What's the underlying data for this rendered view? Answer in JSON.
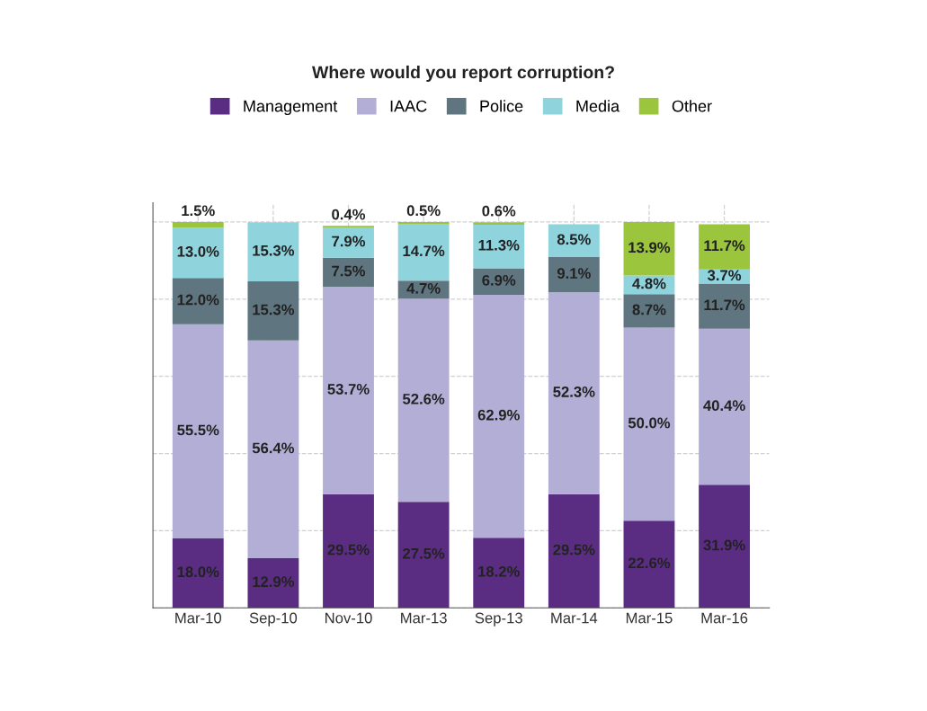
{
  "chart_data": {
    "type": "bar",
    "title": "Where would you report corruption?",
    "stacked": true,
    "grid": true,
    "legend": "top",
    "tick_labels": "x",
    "categories": [
      "Mar-10",
      "Sep-10",
      "Nov-10",
      "Mar-13",
      "Sep-13",
      "Mar-14",
      "Mar-15",
      "Mar-16"
    ],
    "series": [
      {
        "name": "Management",
        "color": "#5b2d82",
        "values": [
          18.0,
          12.9,
          29.5,
          27.5,
          18.2,
          29.5,
          22.6,
          31.9
        ],
        "value_labels": [
          "18.0%",
          "12.9%",
          "29.5%",
          "27.5%",
          "18.2%",
          "29.5%",
          "22.6%",
          "31.9%"
        ]
      },
      {
        "name": "IAAC",
        "color": "#b3aed6",
        "values": [
          55.5,
          56.4,
          53.7,
          52.6,
          62.9,
          52.3,
          50.0,
          40.4
        ],
        "value_labels": [
          "55.5%",
          "56.4%",
          "53.7%",
          "52.6%",
          "62.9%",
          "52.3%",
          "50.0%",
          "40.4%"
        ]
      },
      {
        "name": "Police",
        "color": "#5f7580",
        "values": [
          12.0,
          15.3,
          7.5,
          4.7,
          6.9,
          9.1,
          8.7,
          11.7
        ],
        "value_labels": [
          "12.0%",
          "15.3%",
          "7.5%",
          "4.7%",
          "6.9%",
          "9.1%",
          "8.7%",
          "11.7%"
        ]
      },
      {
        "name": "Media",
        "color": "#8fd3dc",
        "values": [
          13.0,
          15.3,
          7.9,
          14.7,
          11.3,
          8.5,
          4.8,
          3.7
        ],
        "value_labels": [
          "13.0%",
          "15.3%",
          "7.9%",
          "14.7%",
          "11.3%",
          "8.5%",
          "4.8%",
          "3.7%"
        ]
      },
      {
        "name": "Other",
        "color": "#9ac53c",
        "values": [
          1.5,
          null,
          0.4,
          0.5,
          0.6,
          null,
          13.9,
          11.7
        ],
        "value_labels": [
          "1.5%",
          null,
          "0.4%",
          "0.5%",
          "0.6%",
          null,
          "13.9%",
          "11.7%"
        ]
      }
    ]
  }
}
